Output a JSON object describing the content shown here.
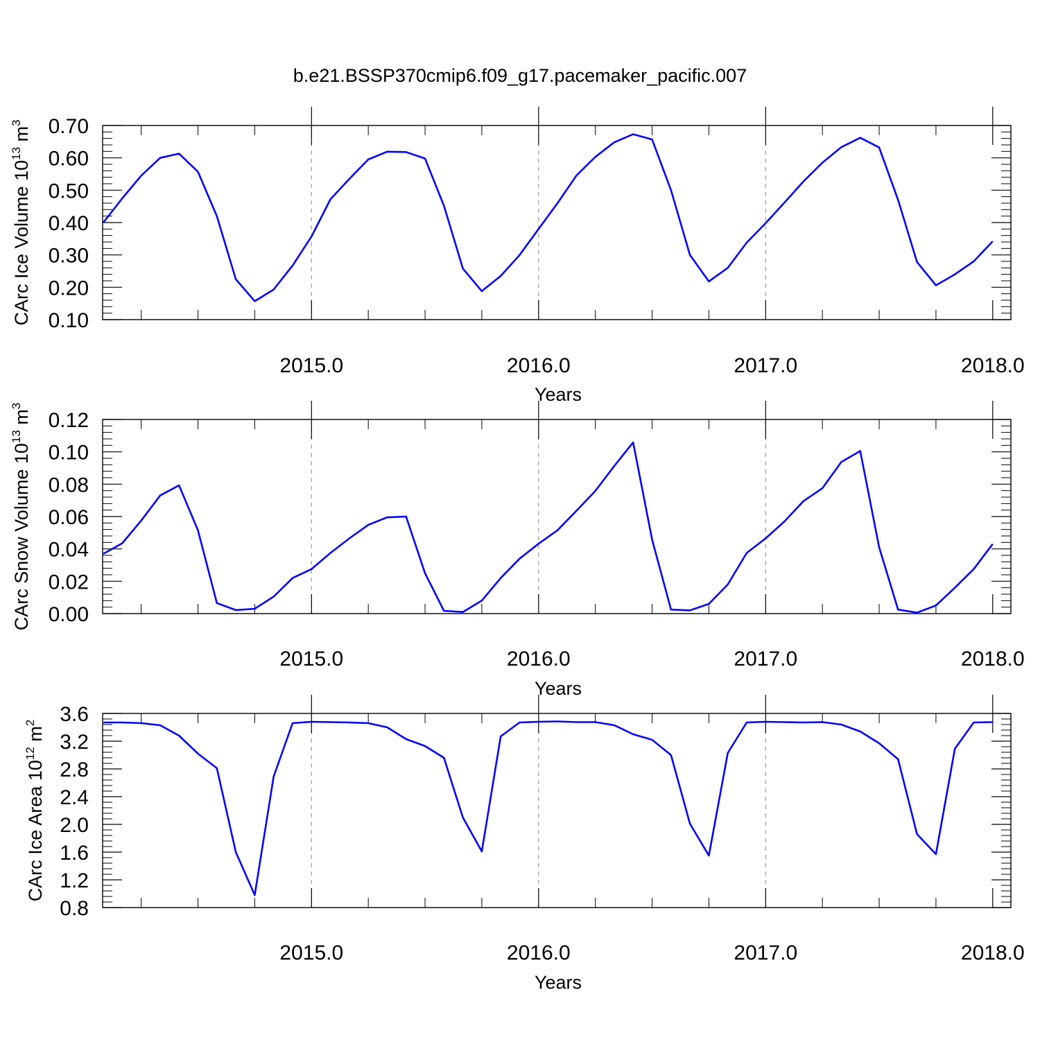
{
  "figure": {
    "title": "b.e21.BSSP370cmip6.f09_g17.pacemaker_pacific.007",
    "line_color": "#0000ff",
    "grid_color": "#9a9a9a"
  },
  "chart_data": [
    {
      "type": "line",
      "xlabel": "Years",
      "ylabel_main": "CArc Ice Volume 10",
      "ylabel_exp": "13",
      "ylabel_unit": " m",
      "ylabel_unit_exp": "3",
      "xlim": [
        2014.08,
        2018.08
      ],
      "ylim": [
        0.1,
        0.7
      ],
      "yticks": [
        "0.10",
        "0.20",
        "0.30",
        "0.40",
        "0.50",
        "0.60",
        "0.70"
      ],
      "xticks": [
        "2015.0",
        "2016.0",
        "2017.0",
        "2018.0"
      ],
      "grid_x": [
        2015,
        2016,
        2017
      ],
      "x_start": 2014.0833,
      "x_step": 0.08333,
      "series": [
        {
          "values": [
            0.4,
            0.475,
            0.545,
            0.6,
            0.613,
            0.557,
            0.42,
            0.225,
            0.157,
            0.193,
            0.267,
            0.357,
            0.472,
            0.535,
            0.595,
            0.619,
            0.618,
            0.598,
            0.452,
            0.258,
            0.188,
            0.235,
            0.3,
            0.38,
            0.46,
            0.545,
            0.603,
            0.648,
            0.673,
            0.657,
            0.5,
            0.3,
            0.218,
            0.26,
            0.338,
            0.398,
            0.462,
            0.527,
            0.585,
            0.633,
            0.662,
            0.632,
            0.47,
            0.278,
            0.206,
            0.24,
            0.28,
            0.342
          ]
        }
      ]
    },
    {
      "type": "line",
      "xlabel": "Years",
      "ylabel_main": "CArc Snow Volume 10",
      "ylabel_exp": "13",
      "ylabel_unit": " m",
      "ylabel_unit_exp": "3",
      "xlim": [
        2014.08,
        2018.08
      ],
      "ylim": [
        0.0,
        0.12
      ],
      "yticks": [
        "0.00",
        "0.02",
        "0.04",
        "0.06",
        "0.08",
        "0.10",
        "0.12"
      ],
      "xticks": [
        "2015.0",
        "2016.0",
        "2017.0",
        "2018.0"
      ],
      "grid_x": [
        2015,
        2016,
        2017
      ],
      "x_start": 2014.0833,
      "x_step": 0.08333,
      "series": [
        {
          "values": [
            0.037,
            0.0435,
            0.0575,
            0.073,
            0.0793,
            0.0515,
            0.0065,
            0.0022,
            0.003,
            0.0105,
            0.022,
            0.0275,
            0.0375,
            0.0465,
            0.0548,
            0.0595,
            0.06,
            0.025,
            0.0017,
            0.001,
            0.008,
            0.022,
            0.034,
            0.0432,
            0.0515,
            0.0635,
            0.0758,
            0.0912,
            0.1058,
            0.0458,
            0.0025,
            0.002,
            0.006,
            0.018,
            0.0375,
            0.0465,
            0.057,
            0.0695,
            0.0775,
            0.0937,
            0.1005,
            0.041,
            0.0025,
            0.0006,
            0.005,
            0.016,
            0.0275,
            0.043
          ]
        }
      ]
    },
    {
      "type": "line",
      "xlabel": "Years",
      "ylabel_main": "CArc Ice Area 10",
      "ylabel_exp": "12",
      "ylabel_unit": " m",
      "ylabel_unit_exp": "2",
      "xlim": [
        2014.08,
        2018.08
      ],
      "ylim": [
        0.8,
        3.6
      ],
      "yticks": [
        "0.8",
        "1.2",
        "1.6",
        "2.0",
        "2.4",
        "2.8",
        "3.2",
        "3.6"
      ],
      "xticks": [
        "2015.0",
        "2016.0",
        "2017.0",
        "2018.0"
      ],
      "grid_x": [
        2015,
        2016,
        2017
      ],
      "x_start": 2014.0833,
      "x_step": 0.08333,
      "series": [
        {
          "values": [
            3.47,
            3.47,
            3.46,
            3.43,
            3.28,
            3.02,
            2.81,
            1.6,
            0.98,
            2.69,
            3.46,
            3.48,
            3.475,
            3.47,
            3.46,
            3.4,
            3.23,
            3.13,
            2.96,
            2.1,
            1.61,
            3.27,
            3.47,
            3.48,
            3.485,
            3.475,
            3.475,
            3.43,
            3.3,
            3.22,
            3.0,
            2.01,
            1.55,
            3.03,
            3.47,
            3.48,
            3.475,
            3.47,
            3.475,
            3.44,
            3.34,
            3.17,
            2.94,
            1.86,
            1.57,
            3.09,
            3.47,
            3.475
          ]
        }
      ]
    }
  ]
}
